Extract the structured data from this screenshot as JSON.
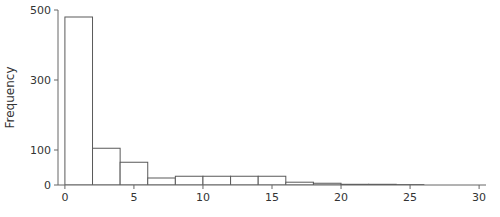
{
  "chart_data": {
    "type": "histogram",
    "ylabel": "Frequency",
    "bins": [
      0,
      2,
      4,
      6,
      8,
      10,
      12,
      14,
      16,
      18,
      20,
      22,
      24,
      26
    ],
    "values": [
      480,
      105,
      65,
      20,
      25,
      25,
      25,
      25,
      8,
      5,
      2,
      2,
      1
    ],
    "color": "#ffffff",
    "xlim": [
      -0.5,
      30.5
    ],
    "ylim": [
      0,
      500
    ],
    "xticks": [
      0,
      5,
      10,
      15,
      20,
      25,
      30
    ],
    "yticks": [
      0,
      100,
      300,
      500
    ],
    "grid": false
  }
}
